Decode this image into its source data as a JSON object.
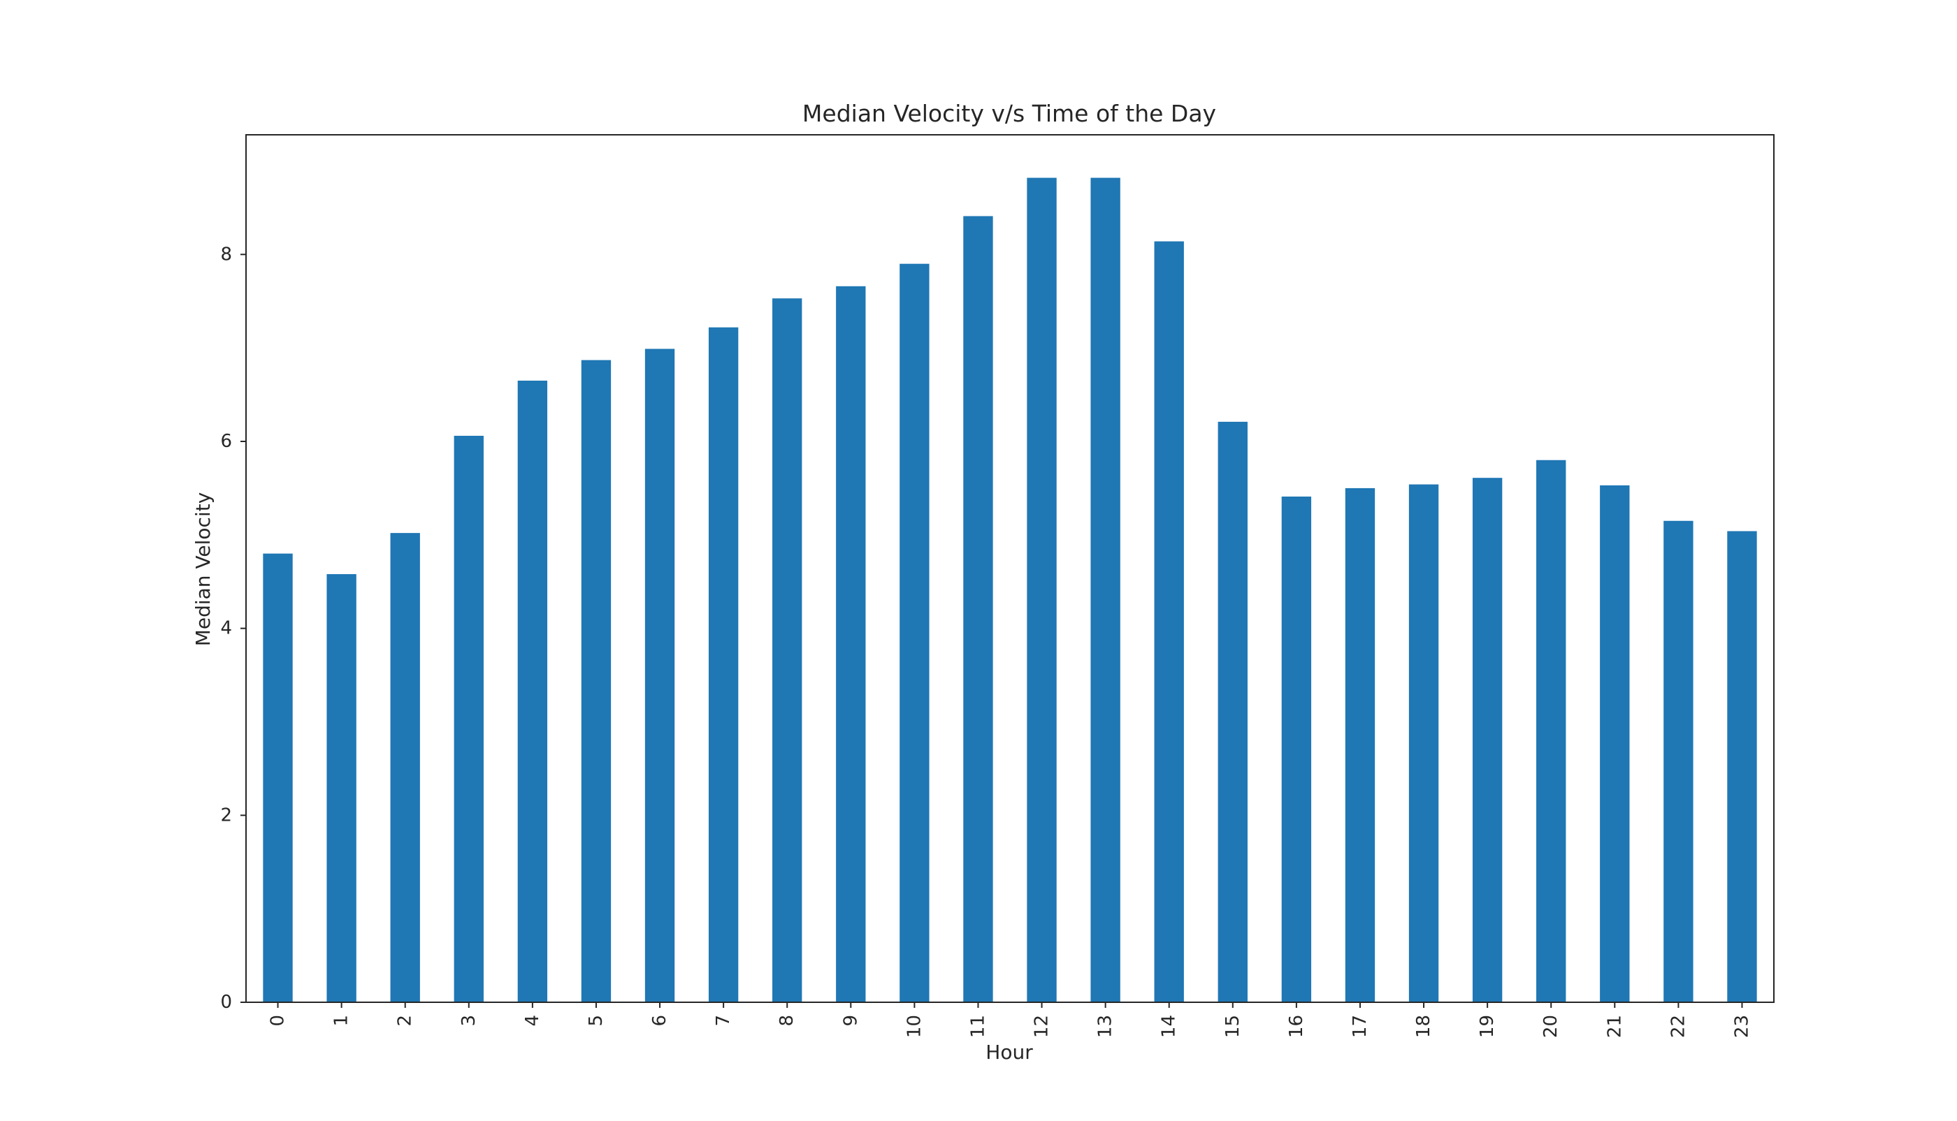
{
  "chart_data": {
    "type": "bar",
    "title": "Median Velocity v/s Time of the Day",
    "xlabel": "Hour",
    "ylabel": "Median Velocity",
    "categories": [
      "0",
      "1",
      "2",
      "3",
      "4",
      "5",
      "6",
      "7",
      "8",
      "9",
      "10",
      "11",
      "12",
      "13",
      "14",
      "15",
      "16",
      "17",
      "18",
      "19",
      "20",
      "21",
      "22",
      "23"
    ],
    "values": [
      4.8,
      4.58,
      5.02,
      6.06,
      6.65,
      6.87,
      6.99,
      7.22,
      7.53,
      7.66,
      7.9,
      8.41,
      8.82,
      8.82,
      8.14,
      6.21,
      5.41,
      5.5,
      5.54,
      5.61,
      5.8,
      5.53,
      5.15,
      5.04
    ],
    "ylim": [
      0,
      9.28
    ],
    "yticks": [
      0,
      2,
      4,
      6,
      8
    ],
    "grid": false,
    "legend": "none",
    "bar_color": "#1f77b4"
  }
}
